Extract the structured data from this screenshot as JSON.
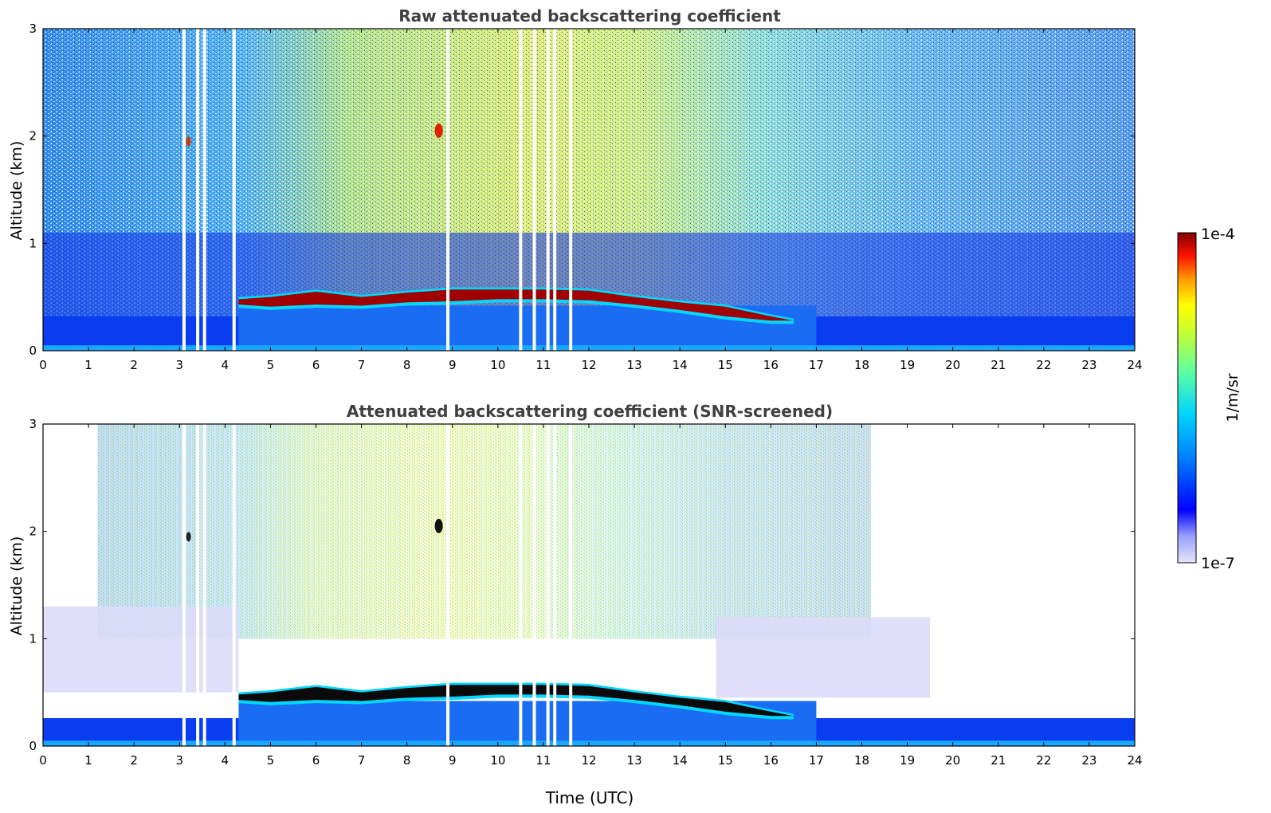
{
  "chart_data": [
    {
      "type": "heatmap",
      "title": "Raw attenuated backscattering coefficient",
      "xlabel": "",
      "ylabel": "Altitude (km)",
      "xlim": [
        0,
        24
      ],
      "ylim": [
        0,
        3
      ],
      "x_ticks": [
        "0",
        "1",
        "2",
        "3",
        "4",
        "5",
        "6",
        "7",
        "8",
        "9",
        "10",
        "11",
        "12",
        "13",
        "14",
        "15",
        "16",
        "17",
        "18",
        "19",
        "20",
        "21",
        "22",
        "23",
        "24"
      ],
      "y_ticks": [
        "0",
        "1",
        "2",
        "3"
      ],
      "layer_top_km": {
        "x": [
          4.3,
          5,
          6,
          7,
          8,
          9,
          10,
          11,
          12,
          13,
          14,
          15,
          16,
          16.5
        ],
        "y": [
          0.5,
          0.52,
          0.57,
          0.52,
          0.56,
          0.59,
          0.59,
          0.59,
          0.58,
          0.52,
          0.47,
          0.43,
          0.34,
          0.3
        ]
      },
      "layer_bottom_km": {
        "x": [
          4.3,
          5,
          6,
          7,
          8,
          9,
          10,
          11,
          12,
          13,
          14,
          15,
          16,
          16.5
        ],
        "y": [
          0.4,
          0.38,
          0.4,
          0.39,
          0.42,
          0.43,
          0.45,
          0.45,
          0.44,
          0.4,
          0.35,
          0.29,
          0.25,
          0.25
        ]
      },
      "gaps_utc": [
        3.1,
        3.4,
        3.55,
        4.2,
        8.9,
        10.5,
        10.8,
        11.1,
        11.25,
        11.6
      ]
    },
    {
      "type": "heatmap",
      "title": "Attenuated backscattering coefficient (SNR-screened)",
      "xlabel": "Time (UTC)",
      "ylabel": "Altitude (km)",
      "xlim": [
        0,
        24
      ],
      "ylim": [
        0,
        3
      ],
      "x_ticks": [
        "0",
        "1",
        "2",
        "3",
        "4",
        "5",
        "6",
        "7",
        "8",
        "9",
        "10",
        "11",
        "12",
        "13",
        "14",
        "15",
        "16",
        "17",
        "18",
        "19",
        "20",
        "21",
        "22",
        "23",
        "24"
      ],
      "y_ticks": [
        "0",
        "1",
        "2",
        "3"
      ],
      "layer_top_km": {
        "x": [
          4.3,
          5,
          6,
          7,
          8,
          9,
          10,
          11,
          12,
          13,
          14,
          15,
          16,
          16.5
        ],
        "y": [
          0.5,
          0.52,
          0.57,
          0.52,
          0.56,
          0.59,
          0.59,
          0.59,
          0.58,
          0.52,
          0.47,
          0.43,
          0.34,
          0.3
        ]
      },
      "layer_bottom_km": {
        "x": [
          4.3,
          5,
          6,
          7,
          8,
          9,
          10,
          11,
          12,
          13,
          14,
          15,
          16,
          16.5
        ],
        "y": [
          0.4,
          0.38,
          0.4,
          0.39,
          0.42,
          0.43,
          0.45,
          0.45,
          0.44,
          0.4,
          0.35,
          0.29,
          0.25,
          0.25
        ]
      },
      "gaps_utc": [
        3.1,
        3.4,
        3.55,
        4.2,
        8.9,
        10.5,
        10.8,
        11.1,
        11.25,
        11.6
      ]
    }
  ],
  "colorbar": {
    "label": "1/m/sr",
    "max_label": "1e-4",
    "min_label": "1e-7",
    "colormap": [
      "#e6e6fa",
      "#0000ff",
      "#00bfff",
      "#7fff7f",
      "#ffff00",
      "#ff7f00",
      "#ff0000",
      "#800000"
    ]
  }
}
